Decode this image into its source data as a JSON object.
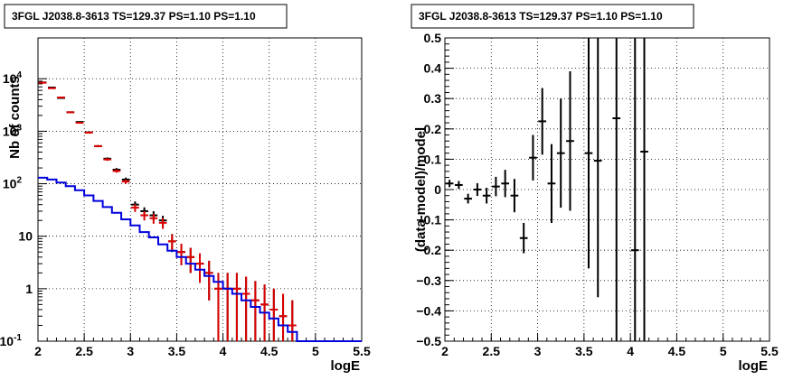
{
  "chart_data": [
    {
      "type": "line",
      "title": "3FGL J2038.8-3613 TS=129.37 PS=1.10 PS=1.10",
      "xlabel": "logE",
      "ylabel": "Nb of counts",
      "xlim": [
        2,
        5.5
      ],
      "ylim": [
        0.1,
        60000
      ],
      "yscale": "log",
      "grid": true,
      "xticks": [
        "2",
        "2.5",
        "3",
        "3.5",
        "4",
        "4.5",
        "5",
        "5.5"
      ],
      "yticks": [
        "10^-1",
        "1",
        "10",
        "10^2",
        "10^3",
        "10^4"
      ],
      "series": [
        {
          "style": "points",
          "color": "#000000",
          "x": [
            2.05,
            2.15,
            2.25,
            2.35,
            2.45,
            2.55,
            2.65,
            2.75,
            2.85,
            2.95,
            3.05,
            3.15,
            3.25,
            3.35,
            3.45,
            3.55,
            3.65,
            3.75,
            3.85,
            3.95,
            4.05,
            4.15,
            4.25,
            4.35,
            4.45,
            4.55,
            4.65,
            4.75
          ],
          "y": [
            8500,
            6800,
            4300,
            2300,
            1500,
            950,
            520,
            300,
            185,
            120,
            40,
            30,
            25,
            20,
            8,
            5,
            4,
            3,
            2,
            1,
            1,
            1,
            0.8,
            0.6,
            0.5,
            0.4,
            0.3,
            0.2
          ],
          "err": [
            92,
            82,
            66,
            48,
            39,
            31,
            23,
            17,
            14,
            11,
            6,
            5.5,
            5,
            4.5,
            3,
            2.2,
            2,
            1.7,
            1.4,
            1,
            1,
            1,
            0.9,
            0.8,
            0.7,
            0.6,
            0.5,
            0.4
          ]
        },
        {
          "style": "points",
          "color": "#dd0000",
          "x": [
            2.05,
            2.15,
            2.25,
            2.35,
            2.45,
            2.55,
            2.65,
            2.75,
            2.85,
            2.95,
            3.05,
            3.15,
            3.25,
            3.35,
            3.45,
            3.55,
            3.65,
            3.75,
            3.85,
            3.95,
            4.05,
            4.15,
            4.25,
            4.35,
            4.45,
            4.55,
            4.65,
            4.75
          ],
          "y": [
            8400,
            6600,
            4400,
            2300,
            1450,
            940,
            520,
            290,
            175,
            110,
            35,
            25,
            22,
            18,
            8,
            5,
            4,
            3,
            2,
            1,
            1,
            1,
            0.8,
            0.6,
            0.5,
            0.4,
            0.3,
            0.2
          ],
          "err": [
            92,
            81,
            66,
            48,
            38,
            31,
            23,
            17,
            13,
            10,
            6,
            5,
            4.7,
            4.2,
            2.8,
            2.2,
            2,
            1.7,
            1.4,
            1,
            1,
            1,
            0.9,
            0.8,
            0.7,
            0.6,
            0.5,
            0.4
          ]
        },
        {
          "style": "step",
          "color": "#0000dd",
          "x": [
            2.05,
            2.15,
            2.25,
            2.35,
            2.45,
            2.55,
            2.65,
            2.75,
            2.85,
            2.95,
            3.05,
            3.15,
            3.25,
            3.35,
            3.45,
            3.55,
            3.65,
            3.75,
            3.85,
            3.95,
            4.05,
            4.15,
            4.25,
            4.35,
            4.45,
            4.55,
            4.65,
            4.75,
            4.85,
            4.95,
            5.05,
            5.15,
            5.25,
            5.35,
            5.45
          ],
          "y": [
            130,
            120,
            105,
            90,
            75,
            60,
            47,
            36,
            28,
            21,
            16,
            12,
            9.5,
            7,
            5.3,
            4,
            3,
            2.3,
            1.75,
            1.35,
            1,
            0.8,
            0.6,
            0.45,
            0.35,
            0.27,
            0.2,
            0.15,
            0.1,
            0.1,
            0.1,
            0.1,
            0.1,
            0.1,
            0.1
          ]
        }
      ]
    },
    {
      "type": "scatter",
      "title": "3FGL J2038.8-3613 TS=129.37 PS=1.10 PS=1.10",
      "xlabel": "logE",
      "ylabel": "(data-model)/model",
      "xlim": [
        2,
        5.5
      ],
      "ylim": [
        -0.5,
        0.5
      ],
      "grid": true,
      "xticks": [
        "2",
        "2.5",
        "3",
        "3.5",
        "4",
        "4.5",
        "5",
        "5.5"
      ],
      "yticks": [
        "−0.5",
        "−0.4",
        "−0.3",
        "−0.2",
        "−0.1",
        "0",
        "0.1",
        "0.2",
        "0.3",
        "0.4",
        "0.5"
      ],
      "series": [
        {
          "style": "points",
          "color": "#000000",
          "x": [
            2.05,
            2.15,
            2.25,
            2.35,
            2.45,
            2.55,
            2.65,
            2.75,
            2.85,
            2.95,
            3.05,
            3.15,
            3.25,
            3.35,
            3.55,
            3.65,
            3.85,
            4.05,
            4.15
          ],
          "y": [
            0.02,
            0.015,
            -0.03,
            0.0,
            -0.02,
            0.01,
            0.02,
            -0.02,
            -0.16,
            0.105,
            0.225,
            0.02,
            0.12,
            0.16,
            0.12,
            0.095,
            0.235,
            -0.2,
            0.125
          ],
          "err": [
            0.012,
            0.013,
            0.016,
            0.021,
            0.026,
            0.032,
            0.045,
            0.055,
            0.05,
            0.075,
            0.11,
            0.13,
            0.18,
            0.23,
            0.38,
            0.45,
            0.8,
            0.9,
            0.8
          ]
        }
      ]
    }
  ]
}
